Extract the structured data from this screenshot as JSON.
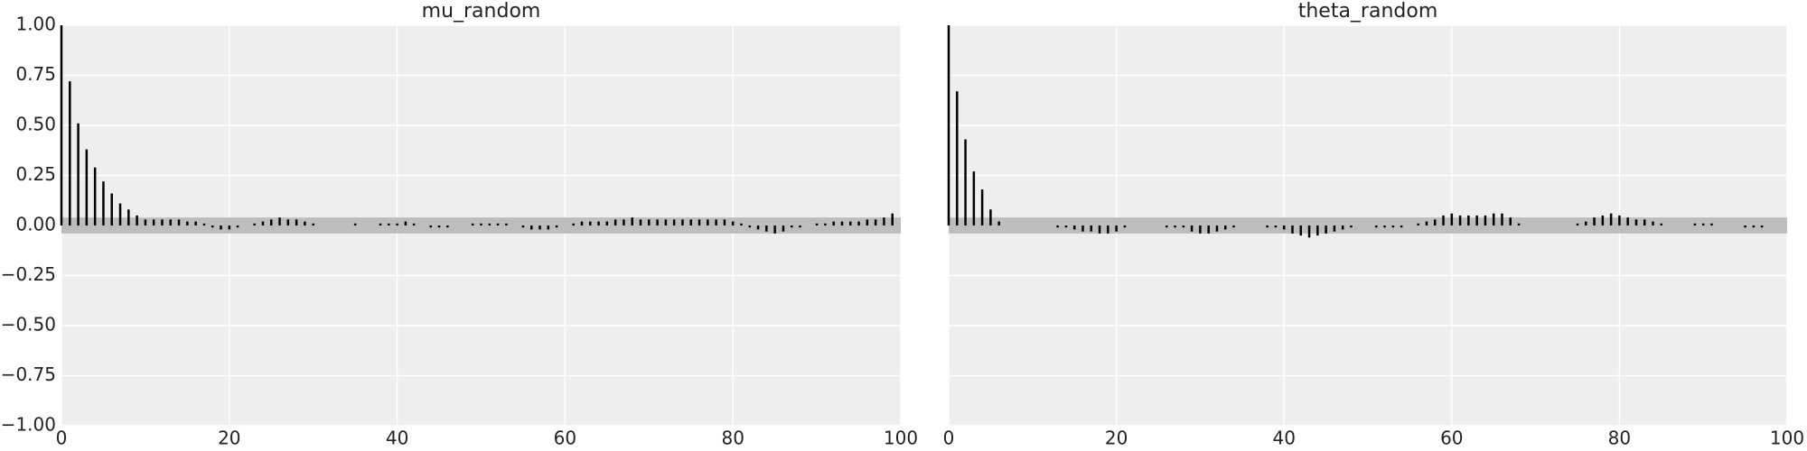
{
  "chart_data": [
    {
      "type": "stem",
      "title": "mu_random",
      "x": [
        0,
        1,
        2,
        3,
        4,
        5,
        6,
        7,
        8,
        9,
        10,
        11,
        12,
        13,
        14,
        15,
        16,
        17,
        18,
        19,
        20,
        21,
        22,
        23,
        24,
        25,
        26,
        27,
        28,
        29,
        30,
        31,
        32,
        33,
        34,
        35,
        36,
        37,
        38,
        39,
        40,
        41,
        42,
        43,
        44,
        45,
        46,
        47,
        48,
        49,
        50,
        51,
        52,
        53,
        54,
        55,
        56,
        57,
        58,
        59,
        60,
        61,
        62,
        63,
        64,
        65,
        66,
        67,
        68,
        69,
        70,
        71,
        72,
        73,
        74,
        75,
        76,
        77,
        78,
        79,
        80,
        81,
        82,
        83,
        84,
        85,
        86,
        87,
        88,
        89,
        90,
        91,
        92,
        93,
        94,
        95,
        96,
        97,
        98,
        99
      ],
      "values": [
        1.0,
        0.72,
        0.51,
        0.38,
        0.29,
        0.22,
        0.16,
        0.11,
        0.08,
        0.05,
        0.03,
        0.03,
        0.03,
        0.03,
        0.03,
        0.02,
        0.02,
        0.01,
        -0.01,
        -0.02,
        -0.02,
        -0.01,
        0.0,
        0.01,
        0.02,
        0.03,
        0.04,
        0.03,
        0.03,
        0.02,
        0.01,
        0.0,
        0.0,
        0.0,
        0.0,
        0.01,
        0.0,
        0.0,
        0.01,
        0.01,
        0.01,
        0.02,
        0.01,
        0.0,
        -0.01,
        -0.01,
        -0.01,
        0.0,
        0.0,
        0.01,
        0.01,
        0.01,
        0.01,
        0.01,
        0.0,
        -0.01,
        -0.02,
        -0.02,
        -0.02,
        -0.01,
        0.0,
        0.01,
        0.02,
        0.02,
        0.02,
        0.02,
        0.03,
        0.03,
        0.04,
        0.03,
        0.03,
        0.03,
        0.03,
        0.03,
        0.03,
        0.03,
        0.03,
        0.03,
        0.03,
        0.03,
        0.02,
        0.01,
        -0.01,
        -0.02,
        -0.03,
        -0.04,
        -0.03,
        -0.01,
        -0.01,
        0.0,
        0.01,
        0.01,
        0.02,
        0.02,
        0.02,
        0.02,
        0.03,
        0.03,
        0.04,
        0.06
      ],
      "color": "#000000",
      "band": [
        -0.04,
        0.04
      ],
      "band_color": "#bdbdbd",
      "xlim": [
        0,
        100
      ],
      "xticks": [
        0,
        20,
        40,
        60,
        80,
        100
      ],
      "ylim": [
        -1,
        1
      ],
      "yticks": [
        {
          "value": -1,
          "label": "−1.00"
        },
        {
          "value": -0.75,
          "label": "−0.75"
        },
        {
          "value": -0.5,
          "label": "−0.50"
        },
        {
          "value": -0.25,
          "label": "−0.25"
        },
        {
          "value": 0,
          "label": "0.00"
        },
        0.25,
        {
          "value": 0.5,
          "label": "0.50"
        },
        0.75,
        {
          "value": 1,
          "label": "1.00"
        }
      ],
      "grid": true
    },
    {
      "type": "stem",
      "title": "theta_random",
      "x": [
        0,
        1,
        2,
        3,
        4,
        5,
        6,
        7,
        8,
        9,
        10,
        11,
        12,
        13,
        14,
        15,
        16,
        17,
        18,
        19,
        20,
        21,
        22,
        23,
        24,
        25,
        26,
        27,
        28,
        29,
        30,
        31,
        32,
        33,
        34,
        35,
        36,
        37,
        38,
        39,
        40,
        41,
        42,
        43,
        44,
        45,
        46,
        47,
        48,
        49,
        50,
        51,
        52,
        53,
        54,
        55,
        56,
        57,
        58,
        59,
        60,
        61,
        62,
        63,
        64,
        65,
        66,
        67,
        68,
        69,
        70,
        71,
        72,
        73,
        74,
        75,
        76,
        77,
        78,
        79,
        80,
        81,
        82,
        83,
        84,
        85,
        86,
        87,
        88,
        89,
        90,
        91,
        92,
        93,
        94,
        95,
        96,
        97,
        98,
        99
      ],
      "values": [
        1.0,
        0.67,
        0.43,
        0.27,
        0.18,
        0.08,
        0.02,
        0.0,
        0.0,
        0.0,
        0.0,
        0.0,
        0.0,
        -0.01,
        -0.01,
        -0.02,
        -0.03,
        -0.03,
        -0.04,
        -0.04,
        -0.03,
        -0.01,
        0.0,
        0.0,
        0.0,
        0.0,
        -0.01,
        -0.01,
        -0.01,
        -0.03,
        -0.04,
        -0.04,
        -0.03,
        -0.02,
        -0.01,
        0.0,
        0.0,
        0.0,
        -0.01,
        -0.01,
        -0.02,
        -0.04,
        -0.05,
        -0.06,
        -0.05,
        -0.04,
        -0.03,
        -0.02,
        -0.01,
        0.0,
        0.0,
        -0.01,
        -0.01,
        -0.01,
        -0.01,
        0.0,
        0.01,
        0.02,
        0.03,
        0.05,
        0.06,
        0.05,
        0.05,
        0.05,
        0.05,
        0.06,
        0.06,
        0.04,
        0.01,
        0.0,
        0.0,
        0.0,
        0.0,
        0.0,
        0.0,
        0.01,
        0.02,
        0.04,
        0.05,
        0.06,
        0.05,
        0.04,
        0.03,
        0.03,
        0.02,
        0.01,
        0.0,
        0.0,
        0.0,
        0.01,
        0.01,
        0.01,
        0.0,
        0.0,
        0.0,
        -0.01,
        -0.01,
        -0.01,
        0.0,
        0.0
      ],
      "color": "#000000",
      "band": [
        -0.04,
        0.04
      ],
      "band_color": "#bdbdbd",
      "xlim": [
        0,
        100
      ],
      "xticks": [
        0,
        20,
        40,
        60,
        80,
        100
      ],
      "sharey": true,
      "grid": true
    }
  ]
}
